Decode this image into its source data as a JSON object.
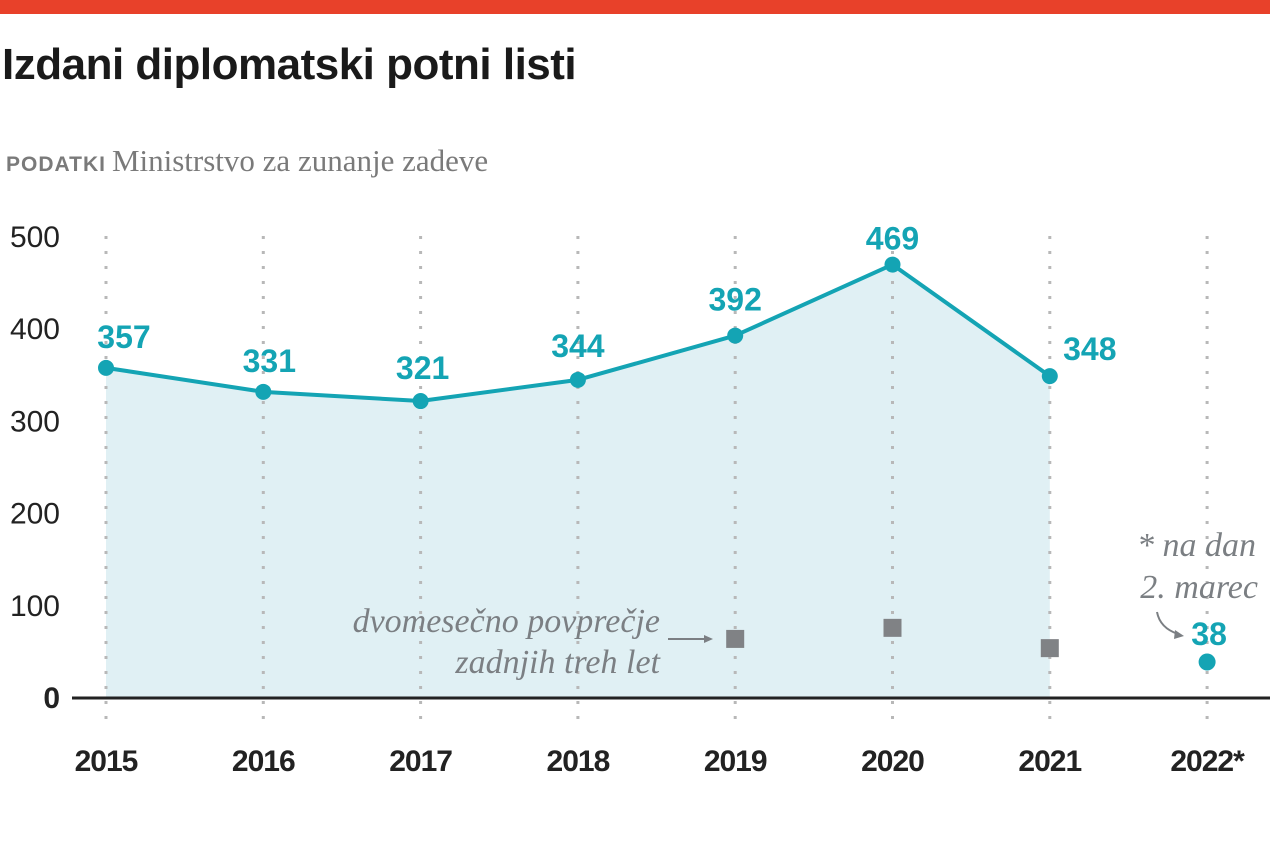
{
  "header": {
    "title": "Izdani diplomatski potni listi",
    "source_label": "PODATKI",
    "source_text": "Ministrstvo za zunanje zadeve"
  },
  "colors": {
    "accent_bar": "#e8412a",
    "line": "#14a4b4",
    "area_fill": "#e0f0f4",
    "average_marker": "#808285",
    "gridline": "#b8b8b8"
  },
  "chart_data": {
    "type": "line",
    "title": "Izdani diplomatski potni listi",
    "xlabel": "",
    "ylabel": "",
    "ylim": [
      0,
      500
    ],
    "yticks": [
      "0",
      "100",
      "200",
      "300",
      "400",
      "500"
    ],
    "categories": [
      "2015",
      "2016",
      "2017",
      "2018",
      "2019",
      "2020",
      "2021",
      "2022*"
    ],
    "grid": "vertical dotted",
    "series": [
      {
        "name": "Izdani diplomatski potni listi",
        "x": [
          "2015",
          "2016",
          "2017",
          "2018",
          "2019",
          "2020",
          "2021"
        ],
        "values": [
          357,
          331,
          321,
          344,
          392,
          469,
          348
        ],
        "labels": [
          "357",
          "331",
          "321",
          "344",
          "392",
          "469",
          "348"
        ],
        "style": "line-area"
      },
      {
        "name": "dvomesečno povprečje zadnjih treh let",
        "x": [
          "2019",
          "2020",
          "2021"
        ],
        "values": [
          63,
          75,
          53
        ],
        "style": "square-markers"
      },
      {
        "name": "2022*",
        "x": [
          "2022*"
        ],
        "values": [
          38
        ],
        "labels": [
          "38"
        ],
        "style": "point"
      }
    ],
    "annotations": {
      "average_line1": "dvomesečno povprečje",
      "average_line2": "zadnjih treh let",
      "partial_line1": "* na dan",
      "partial_line2": "2. marec"
    }
  }
}
